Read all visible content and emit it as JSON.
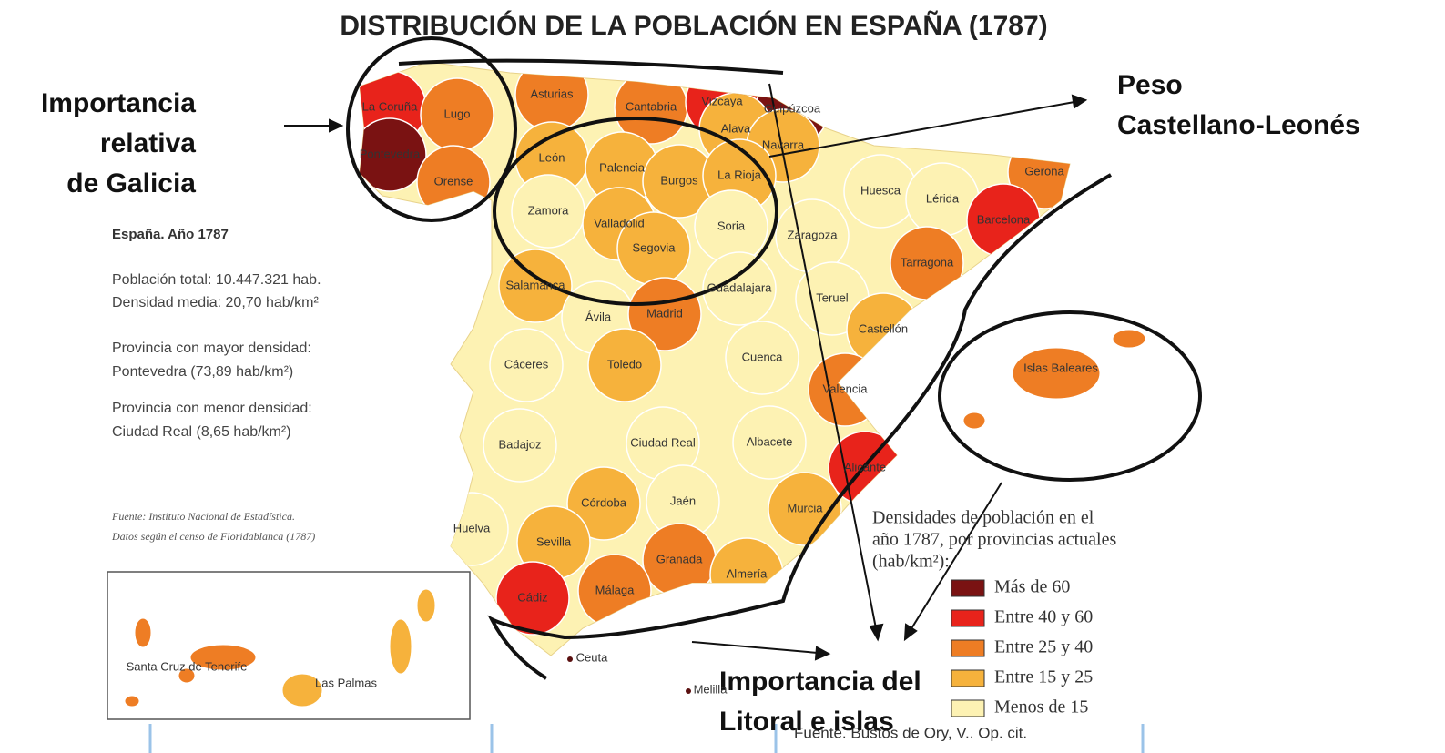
{
  "title": "DISTRIBUCIÓN DE LA POBLACIÓN EN ESPAÑA (1787)",
  "annotations": [
    {
      "lines": [
        "Importancia",
        "relativa",
        "de Galicia"
      ]
    },
    {
      "lines": [
        "Peso",
        "Castellano-Leonés"
      ]
    },
    {
      "lines": [
        "Importancia del",
        "Litoral e islas"
      ]
    }
  ],
  "info": {
    "heading": "España. Año 1787",
    "lines": [
      "Población total: 10.447.321 hab.",
      "Densidad media: 20,70 hab/km²",
      "Provincia con mayor densidad:",
      "Pontevedra (73,89 hab/km²)",
      "Provincia con menor densidad:",
      "Ciudad Real (8,65 hab/km²)"
    ],
    "source": [
      "Fuente: Instituto Nacional de Estadística.",
      "Datos según el censo de Floridablanca (1787)"
    ]
  },
  "legend": {
    "title": [
      "Densidades de población en el",
      "año 1787, por provincias actuales",
      "(hab/km²):"
    ],
    "items": [
      {
        "label": "Más de 60",
        "color": "#7a1212"
      },
      {
        "label": "Entre 40 y 60",
        "color": "#e8231b"
      },
      {
        "label": "Entre 25 y 40",
        "color": "#ee7d24"
      },
      {
        "label": "Entre 15 y 25",
        "color": "#f6b23c"
      },
      {
        "label": "Menos de 15",
        "color": "#fdf2b3"
      }
    ]
  },
  "provinces": [
    {
      "name": "La Coruña",
      "color": "#e8231b"
    },
    {
      "name": "Lugo",
      "color": "#ee7d24"
    },
    {
      "name": "Pontevedra",
      "color": "#7a1212"
    },
    {
      "name": "Orense",
      "color": "#ee7d24"
    },
    {
      "name": "Asturias",
      "color": "#ee7d24"
    },
    {
      "name": "Cantabria",
      "color": "#ee7d24"
    },
    {
      "name": "Vizcaya",
      "color": "#e8231b"
    },
    {
      "name": "Guipúzcoa",
      "color": "#7a1212"
    },
    {
      "name": "Alava",
      "color": "#f6b23c"
    },
    {
      "name": "Navarra",
      "color": "#f6b23c"
    },
    {
      "name": "León",
      "color": "#f6b23c"
    },
    {
      "name": "Palencia",
      "color": "#f6b23c"
    },
    {
      "name": "Burgos",
      "color": "#f6b23c"
    },
    {
      "name": "La Rioja",
      "color": "#f6b23c"
    },
    {
      "name": "Zamora",
      "color": "#fdf2b3"
    },
    {
      "name": "Valladolid",
      "color": "#f6b23c"
    },
    {
      "name": "Soria",
      "color": "#fdf2b3"
    },
    {
      "name": "Segovia",
      "color": "#f6b23c"
    },
    {
      "name": "Zaragoza",
      "color": "#fdf2b3"
    },
    {
      "name": "Huesca",
      "color": "#fdf2b3"
    },
    {
      "name": "Lérida",
      "color": "#fdf2b3"
    },
    {
      "name": "Gerona",
      "color": "#ee7d24"
    },
    {
      "name": "Barcelona",
      "color": "#e8231b"
    },
    {
      "name": "Tarragona",
      "color": "#ee7d24"
    },
    {
      "name": "Salamanca",
      "color": "#f6b23c"
    },
    {
      "name": "Ávila",
      "color": "#fdf2b3"
    },
    {
      "name": "Madrid",
      "color": "#ee7d24"
    },
    {
      "name": "Guadalajara",
      "color": "#fdf2b3"
    },
    {
      "name": "Teruel",
      "color": "#fdf2b3"
    },
    {
      "name": "Castellón",
      "color": "#f6b23c"
    },
    {
      "name": "Cáceres",
      "color": "#fdf2b3"
    },
    {
      "name": "Toledo",
      "color": "#f6b23c"
    },
    {
      "name": "Cuenca",
      "color": "#fdf2b3"
    },
    {
      "name": "Valencia",
      "color": "#ee7d24"
    },
    {
      "name": "Badajoz",
      "color": "#fdf2b3"
    },
    {
      "name": "Ciudad Real",
      "color": "#fdf2b3"
    },
    {
      "name": "Albacete",
      "color": "#fdf2b3"
    },
    {
      "name": "Alicante",
      "color": "#e8231b"
    },
    {
      "name": "Córdoba",
      "color": "#f6b23c"
    },
    {
      "name": "Jaén",
      "color": "#fdf2b3"
    },
    {
      "name": "Murcia",
      "color": "#f6b23c"
    },
    {
      "name": "Huelva",
      "color": "#fdf2b3"
    },
    {
      "name": "Sevilla",
      "color": "#f6b23c"
    },
    {
      "name": "Granada",
      "color": "#ee7d24"
    },
    {
      "name": "Almería",
      "color": "#f6b23c"
    },
    {
      "name": "Málaga",
      "color": "#ee7d24"
    },
    {
      "name": "Cádiz",
      "color": "#e8231b"
    },
    {
      "name": "Islas Baleares",
      "color": "#ee7d24"
    },
    {
      "name": "Santa Cruz de Tenerife",
      "color": "#ee7d24"
    },
    {
      "name": "Las Palmas",
      "color": "#f6b23c"
    }
  ],
  "cities": [
    "Ceuta",
    "Melilla"
  ],
  "footer": "Fuente. Bustos de Ory, V.. Op. cit."
}
